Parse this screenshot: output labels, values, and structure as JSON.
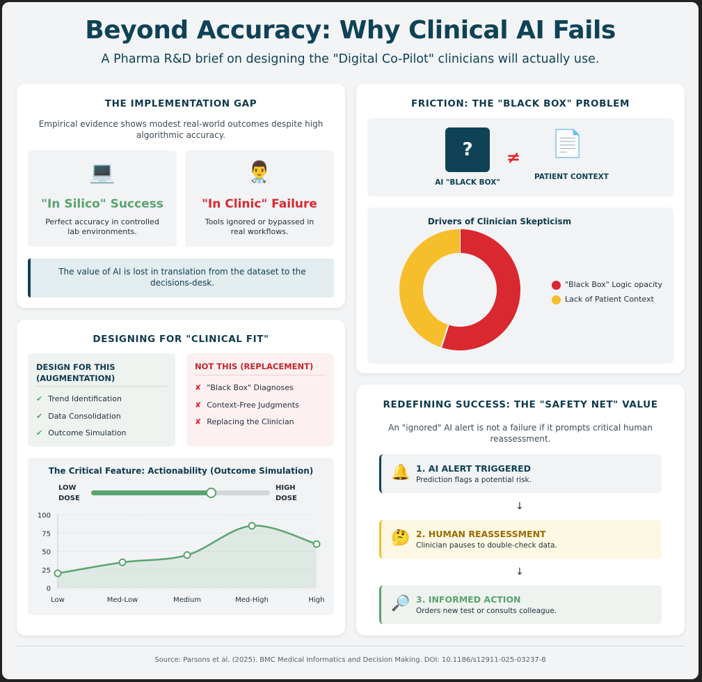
{
  "header": {
    "title": "Beyond Accuracy: Why Clinical AI Fails",
    "subtitle": "A Pharma R&D brief on designing the \"Digital Co-Pilot\" clinicians will actually use."
  },
  "gap": {
    "title": "THE IMPLEMENTATION GAP",
    "intro": "Empirical evidence shows modest real-world outcomes despite high algorithmic accuracy.",
    "silico": {
      "icon": "💻",
      "heading": "\"In Silico\" Success",
      "desc": "Perfect accuracy in controlled lab environments."
    },
    "clinic": {
      "icon": "👨‍⚕️",
      "heading": "\"In Clinic\" Failure",
      "desc": "Tools ignored or bypassed in real workflows."
    },
    "callout": "The value of AI is lost in translation from the dataset to the decisions-desk."
  },
  "friction": {
    "title": "FRICTION: THE \"BLACK BOX\" PROBLEM",
    "box_symbol": "?",
    "box_label": "AI \"BLACK BOX\"",
    "neq": "≠",
    "doc_icon": "📄",
    "context_label": "PATIENT CONTEXT",
    "chart_title": "Drivers of Clinician Skepticism"
  },
  "fit": {
    "title": "DESIGNING FOR \"CLINICAL FIT\"",
    "do_title": "DESIGN FOR THIS (AUGMENTATION)",
    "do_items": [
      "Trend Identification",
      "Data Consolidation",
      "Outcome Simulation"
    ],
    "do_mark": "✔",
    "dont_title": "NOT THIS (REPLACEMENT)",
    "dont_items": [
      "\"Black Box\" Diagnoses",
      "Context-Free Judgments",
      "Replacing the Clinician"
    ],
    "dont_mark": "✘"
  },
  "slider": {
    "low_label": "LOW DOSE",
    "high_label": "HIGH DOSE",
    "value_fraction": 0.67
  },
  "success": {
    "title": "REDEFINING SUCCESS: THE \"SAFETY NET\" VALUE",
    "intro": "An \"ignored\" AI alert is not a failure if it prompts critical human reassessment.",
    "arrow": "↓",
    "steps": [
      {
        "icon": "🔔",
        "heading": "1. AI ALERT TRIGGERED",
        "desc": "Prediction flags a potential risk."
      },
      {
        "icon": "🤔",
        "heading": "2. HUMAN REASSESSMENT",
        "desc": "Clinician pauses to double-check data."
      },
      {
        "icon": "🔎",
        "heading": "3. INFORMED ACTION",
        "desc": "Orders new test or consults colleague."
      }
    ]
  },
  "footer": {
    "source": "Source: Parsons et al. (2025). BMC Medical Informatics and Decision Making. DOI: 10.1186/s12911-025-03237-8"
  },
  "colors": {
    "navy": "#0f4257",
    "green": "#5aa36f",
    "red": "#d9282f",
    "yellow": "#f7be2c",
    "amber": "#9a6b00"
  },
  "chart_data": [
    {
      "type": "pie",
      "title": "Drivers of Clinician Skepticism",
      "labels": [
        "\"Black Box\" Logic opacity",
        "Lack of Patient Context"
      ],
      "values": [
        55,
        45
      ],
      "colors": [
        "#d9282f",
        "#f7be2c"
      ],
      "legend": "right"
    },
    {
      "type": "area",
      "title": "The Critical Feature: Actionability (Outcome Simulation)",
      "categories": [
        "Low",
        "Med-Low",
        "Medium",
        "Med-High",
        "High"
      ],
      "values": [
        20,
        35,
        45,
        85,
        60
      ],
      "yticks": [
        0,
        25,
        50,
        75,
        100
      ],
      "ylim": [
        0,
        100
      ]
    }
  ]
}
